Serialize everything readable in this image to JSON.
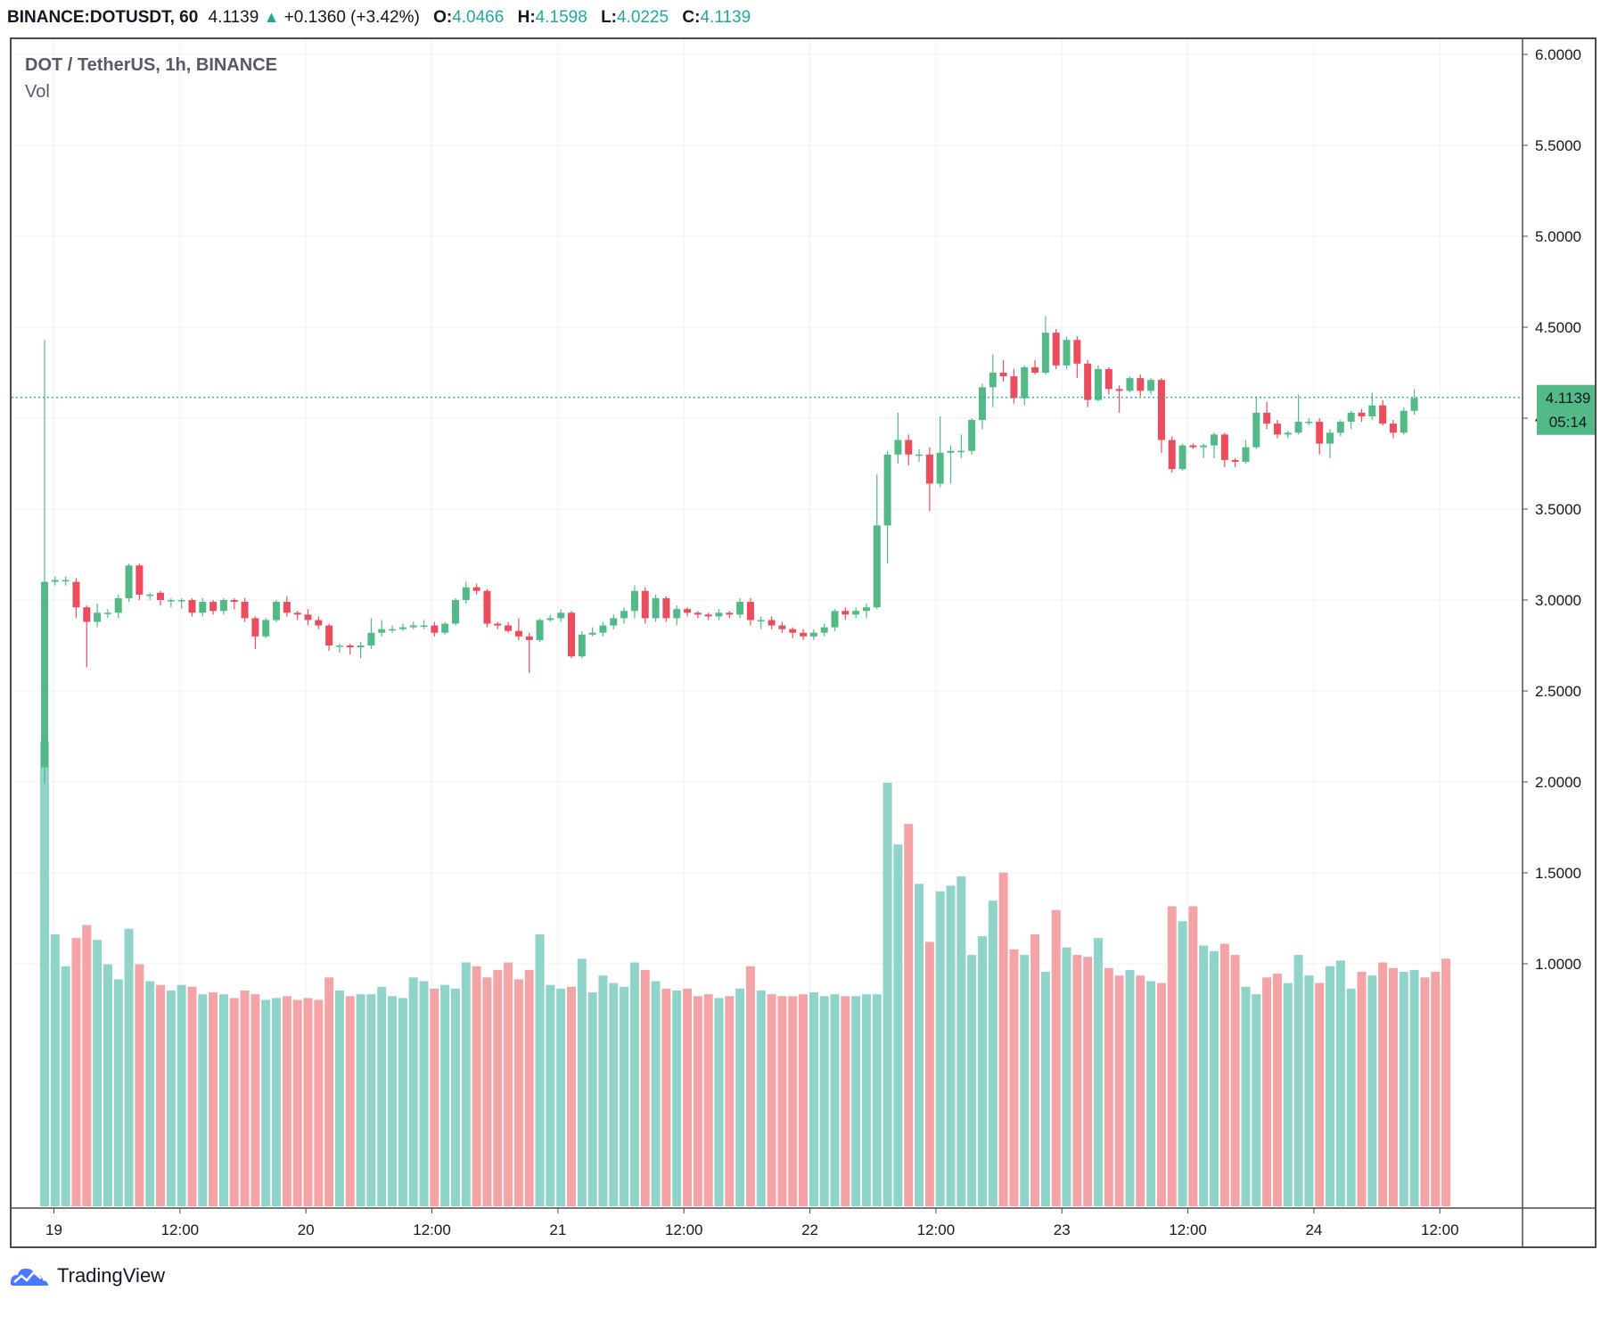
{
  "header": {
    "symbol": "BINANCE:DOTUSDT, 60",
    "last": "4.1139",
    "arrow": "▲",
    "change": "+0.1360 (+3.42%)",
    "o_label": "O:",
    "o_value": "4.0466",
    "h_label": "H:",
    "h_value": "4.1598",
    "l_label": "L:",
    "l_value": "4.0225",
    "c_label": "C:",
    "c_value": "4.1139"
  },
  "legend": {
    "title": "DOT / TetherUS, 1h, BINANCE",
    "volume": "Vol"
  },
  "price_label": "4.1139",
  "countdown": "05:14",
  "brand": "TradingView",
  "colors": {
    "up": "#53b987",
    "down": "#eb4d5c",
    "up_vol": "#8fd3c9",
    "down_vol": "#f4a3a6",
    "grid": "#eef1f4",
    "axis": "#4a4a4a",
    "price_line": "#26a69a"
  },
  "chart_data": {
    "type": "candlestick",
    "y_axis_labels": [
      "6.0000",
      "5.5000",
      "5.0000",
      "4.5000",
      "4.0000",
      "3.5000",
      "3.0000",
      "2.5000",
      "2.0000",
      "1.5000",
      "1.0000"
    ],
    "x_axis_labels": [
      "19",
      "12:00",
      "20",
      "12:00",
      "21",
      "12:00",
      "22",
      "12:00",
      "23",
      "12:00",
      "24",
      "12:00"
    ],
    "ylim": [
      1.44,
      6.22
    ],
    "last_price": 4.1139,
    "candles": [
      [
        2.08,
        3.1,
        1.99,
        4.43
      ],
      [
        3.1,
        3.11,
        3.08,
        3.13
      ],
      [
        3.11,
        3.11,
        3.08,
        3.13
      ],
      [
        3.1,
        2.96,
        2.9,
        3.12
      ],
      [
        2.96,
        2.88,
        2.63,
        2.97
      ],
      [
        2.88,
        2.93,
        2.85,
        2.98
      ],
      [
        2.93,
        2.93,
        2.9,
        2.95
      ],
      [
        2.93,
        3.01,
        2.9,
        3.03
      ],
      [
        3.01,
        3.19,
        2.99,
        3.2
      ],
      [
        3.19,
        3.03,
        3.0,
        3.2
      ],
      [
        3.03,
        3.03,
        3.0,
        3.04
      ],
      [
        3.04,
        3.0,
        2.97,
        3.05
      ],
      [
        3.0,
        3.0,
        2.96,
        3.01
      ],
      [
        3.0,
        3.0,
        2.95,
        3.01
      ],
      [
        3.0,
        2.93,
        2.91,
        3.01
      ],
      [
        2.93,
        2.99,
        2.91,
        3.01
      ],
      [
        2.99,
        2.94,
        2.92,
        3.0
      ],
      [
        2.94,
        3.0,
        2.92,
        3.01
      ],
      [
        3.0,
        2.99,
        2.95,
        3.01
      ],
      [
        2.99,
        2.9,
        2.88,
        3.01
      ],
      [
        2.9,
        2.8,
        2.73,
        2.91
      ],
      [
        2.8,
        2.89,
        2.79,
        2.9
      ],
      [
        2.89,
        2.99,
        2.88,
        3.0
      ],
      [
        2.99,
        2.93,
        2.91,
        3.02
      ],
      [
        2.93,
        2.92,
        2.89,
        2.94
      ],
      [
        2.92,
        2.89,
        2.86,
        2.95
      ],
      [
        2.89,
        2.86,
        2.84,
        2.91
      ],
      [
        2.86,
        2.75,
        2.72,
        2.87
      ],
      [
        2.75,
        2.75,
        2.71,
        2.76
      ],
      [
        2.75,
        2.74,
        2.7,
        2.76
      ],
      [
        2.74,
        2.75,
        2.68,
        2.77
      ],
      [
        2.75,
        2.82,
        2.73,
        2.9
      ],
      [
        2.82,
        2.84,
        2.8,
        2.89
      ],
      [
        2.84,
        2.84,
        2.82,
        2.86
      ],
      [
        2.84,
        2.85,
        2.83,
        2.87
      ],
      [
        2.85,
        2.86,
        2.84,
        2.88
      ],
      [
        2.86,
        2.86,
        2.84,
        2.89
      ],
      [
        2.86,
        2.82,
        2.8,
        2.88
      ],
      [
        2.82,
        2.87,
        2.81,
        2.88
      ],
      [
        2.87,
        3.0,
        2.86,
        3.01
      ],
      [
        3.0,
        3.07,
        2.98,
        3.1
      ],
      [
        3.07,
        3.05,
        3.03,
        3.09
      ],
      [
        3.05,
        2.87,
        2.85,
        3.06
      ],
      [
        2.87,
        2.86,
        2.84,
        2.88
      ],
      [
        2.86,
        2.83,
        2.82,
        2.88
      ],
      [
        2.83,
        2.8,
        2.78,
        2.9
      ],
      [
        2.8,
        2.78,
        2.6,
        2.82
      ],
      [
        2.78,
        2.89,
        2.77,
        2.9
      ],
      [
        2.89,
        2.9,
        2.88,
        2.92
      ],
      [
        2.9,
        2.93,
        2.88,
        2.95
      ],
      [
        2.93,
        2.69,
        2.68,
        2.94
      ],
      [
        2.69,
        2.81,
        2.68,
        2.83
      ],
      [
        2.81,
        2.82,
        2.8,
        2.85
      ],
      [
        2.82,
        2.86,
        2.8,
        2.88
      ],
      [
        2.86,
        2.9,
        2.84,
        2.92
      ],
      [
        2.9,
        2.94,
        2.87,
        2.96
      ],
      [
        2.94,
        3.05,
        2.9,
        3.08
      ],
      [
        3.05,
        2.9,
        2.87,
        3.07
      ],
      [
        2.9,
        3.01,
        2.88,
        3.03
      ],
      [
        3.01,
        2.9,
        2.88,
        3.02
      ],
      [
        2.9,
        2.95,
        2.86,
        2.97
      ],
      [
        2.95,
        2.93,
        2.91,
        2.96
      ],
      [
        2.93,
        2.92,
        2.9,
        2.94
      ],
      [
        2.92,
        2.91,
        2.89,
        2.93
      ],
      [
        2.91,
        2.93,
        2.89,
        2.95
      ],
      [
        2.93,
        2.92,
        2.9,
        2.94
      ],
      [
        2.92,
        2.99,
        2.9,
        3.01
      ],
      [
        2.99,
        2.89,
        2.86,
        3.01
      ],
      [
        2.89,
        2.89,
        2.84,
        2.91
      ],
      [
        2.89,
        2.86,
        2.84,
        2.91
      ],
      [
        2.86,
        2.84,
        2.82,
        2.88
      ],
      [
        2.84,
        2.82,
        2.79,
        2.85
      ],
      [
        2.82,
        2.8,
        2.78,
        2.84
      ],
      [
        2.8,
        2.82,
        2.78,
        2.84
      ],
      [
        2.82,
        2.85,
        2.8,
        2.87
      ],
      [
        2.85,
        2.94,
        2.83,
        2.95
      ],
      [
        2.94,
        2.92,
        2.89,
        2.96
      ],
      [
        2.92,
        2.94,
        2.9,
        2.96
      ],
      [
        2.94,
        2.96,
        2.9,
        2.98
      ],
      [
        2.96,
        3.41,
        2.95,
        3.69
      ],
      [
        3.41,
        3.8,
        3.2,
        3.82
      ],
      [
        3.8,
        3.88,
        3.75,
        4.03
      ],
      [
        3.88,
        3.8,
        3.74,
        3.91
      ],
      [
        3.8,
        3.8,
        3.76,
        3.83
      ],
      [
        3.8,
        3.64,
        3.49,
        3.84
      ],
      [
        3.64,
        3.81,
        3.62,
        4.01
      ],
      [
        3.81,
        3.82,
        3.64,
        3.85
      ],
      [
        3.82,
        3.82,
        3.78,
        3.91
      ],
      [
        3.82,
        3.99,
        3.8,
        4.0
      ],
      [
        3.99,
        4.17,
        3.94,
        4.19
      ],
      [
        4.17,
        4.25,
        4.06,
        4.35
      ],
      [
        4.25,
        4.23,
        4.2,
        4.32
      ],
      [
        4.23,
        4.11,
        4.08,
        4.27
      ],
      [
        4.11,
        4.28,
        4.07,
        4.29
      ],
      [
        4.28,
        4.25,
        4.24,
        4.32
      ],
      [
        4.25,
        4.47,
        4.24,
        4.56
      ],
      [
        4.47,
        4.29,
        4.27,
        4.49
      ],
      [
        4.29,
        4.43,
        4.27,
        4.45
      ],
      [
        4.43,
        4.3,
        4.22,
        4.45
      ],
      [
        4.3,
        4.1,
        4.06,
        4.32
      ],
      [
        4.1,
        4.27,
        4.09,
        4.29
      ],
      [
        4.27,
        4.16,
        4.13,
        4.28
      ],
      [
        4.16,
        4.15,
        4.03,
        4.18
      ],
      [
        4.15,
        4.22,
        4.14,
        4.23
      ],
      [
        4.22,
        4.15,
        4.12,
        4.24
      ],
      [
        4.15,
        4.21,
        4.13,
        4.22
      ],
      [
        4.21,
        3.88,
        3.81,
        4.22
      ],
      [
        3.88,
        3.72,
        3.7,
        3.9
      ],
      [
        3.72,
        3.85,
        3.71,
        3.86
      ],
      [
        3.85,
        3.84,
        3.83,
        3.86
      ],
      [
        3.84,
        3.85,
        3.78,
        3.86
      ],
      [
        3.85,
        3.91,
        3.78,
        3.92
      ],
      [
        3.91,
        3.77,
        3.73,
        3.92
      ],
      [
        3.77,
        3.76,
        3.73,
        3.78
      ],
      [
        3.76,
        3.84,
        3.75,
        3.88
      ],
      [
        3.84,
        4.03,
        3.83,
        4.12
      ],
      [
        4.03,
        3.97,
        3.94,
        4.09
      ],
      [
        3.97,
        3.91,
        3.89,
        3.99
      ],
      [
        3.91,
        3.92,
        3.89,
        3.93
      ],
      [
        3.92,
        3.98,
        3.91,
        4.13
      ],
      [
        3.98,
        3.98,
        3.96,
        4.0
      ],
      [
        3.98,
        3.86,
        3.8,
        4.0
      ],
      [
        3.86,
        3.92,
        3.78,
        3.94
      ],
      [
        3.92,
        3.98,
        3.9,
        3.99
      ],
      [
        3.98,
        4.03,
        3.94,
        4.04
      ],
      [
        4.03,
        4.01,
        3.98,
        4.05
      ],
      [
        4.01,
        4.07,
        3.99,
        4.14
      ],
      [
        4.07,
        3.97,
        3.96,
        4.1
      ],
      [
        3.97,
        3.92,
        3.89,
        3.99
      ],
      [
        3.92,
        4.04,
        3.91,
        4.06
      ],
      [
        4.04,
        4.11,
        4.02,
        4.16
      ]
    ],
    "volumes": [
      1.93,
      0.9,
      0.73,
      0.88,
      0.95,
      0.87,
      0.74,
      0.66,
      0.93,
      0.74,
      0.65,
      0.63,
      0.6,
      0.63,
      0.62,
      0.58,
      0.59,
      0.58,
      0.56,
      0.6,
      0.58,
      0.55,
      0.56,
      0.57,
      0.55,
      0.56,
      0.55,
      0.67,
      0.6,
      0.57,
      0.58,
      0.58,
      0.62,
      0.57,
      0.56,
      0.67,
      0.65,
      0.61,
      0.63,
      0.61,
      0.75,
      0.73,
      0.67,
      0.71,
      0.75,
      0.66,
      0.71,
      0.9,
      0.63,
      0.61,
      0.62,
      0.77,
      0.59,
      0.68,
      0.64,
      0.62,
      0.75,
      0.71,
      0.65,
      0.61,
      0.6,
      0.61,
      0.57,
      0.58,
      0.56,
      0.57,
      0.61,
      0.73,
      0.6,
      0.58,
      0.57,
      0.57,
      0.58,
      0.59,
      0.57,
      0.58,
      0.57,
      0.57,
      0.58,
      0.58,
      1.71,
      1.38,
      1.49,
      1.17,
      0.86,
      1.13,
      1.16,
      1.21,
      0.79,
      0.89,
      1.08,
      1.23,
      0.82,
      0.79,
      0.9,
      0.7,
      1.03,
      0.83,
      0.79,
      0.78,
      0.88,
      0.72,
      0.68,
      0.71,
      0.68,
      0.65,
      0.64,
      1.05,
      0.97,
      1.05,
      0.84,
      0.81,
      0.85,
      0.79,
      0.62,
      0.58,
      0.67,
      0.69,
      0.64,
      0.79,
      0.68,
      0.64,
      0.73,
      0.76,
      0.61,
      0.7,
      0.68,
      0.75,
      0.72,
      0.7,
      0.71,
      0.67,
      0.7,
      0.77
    ]
  }
}
